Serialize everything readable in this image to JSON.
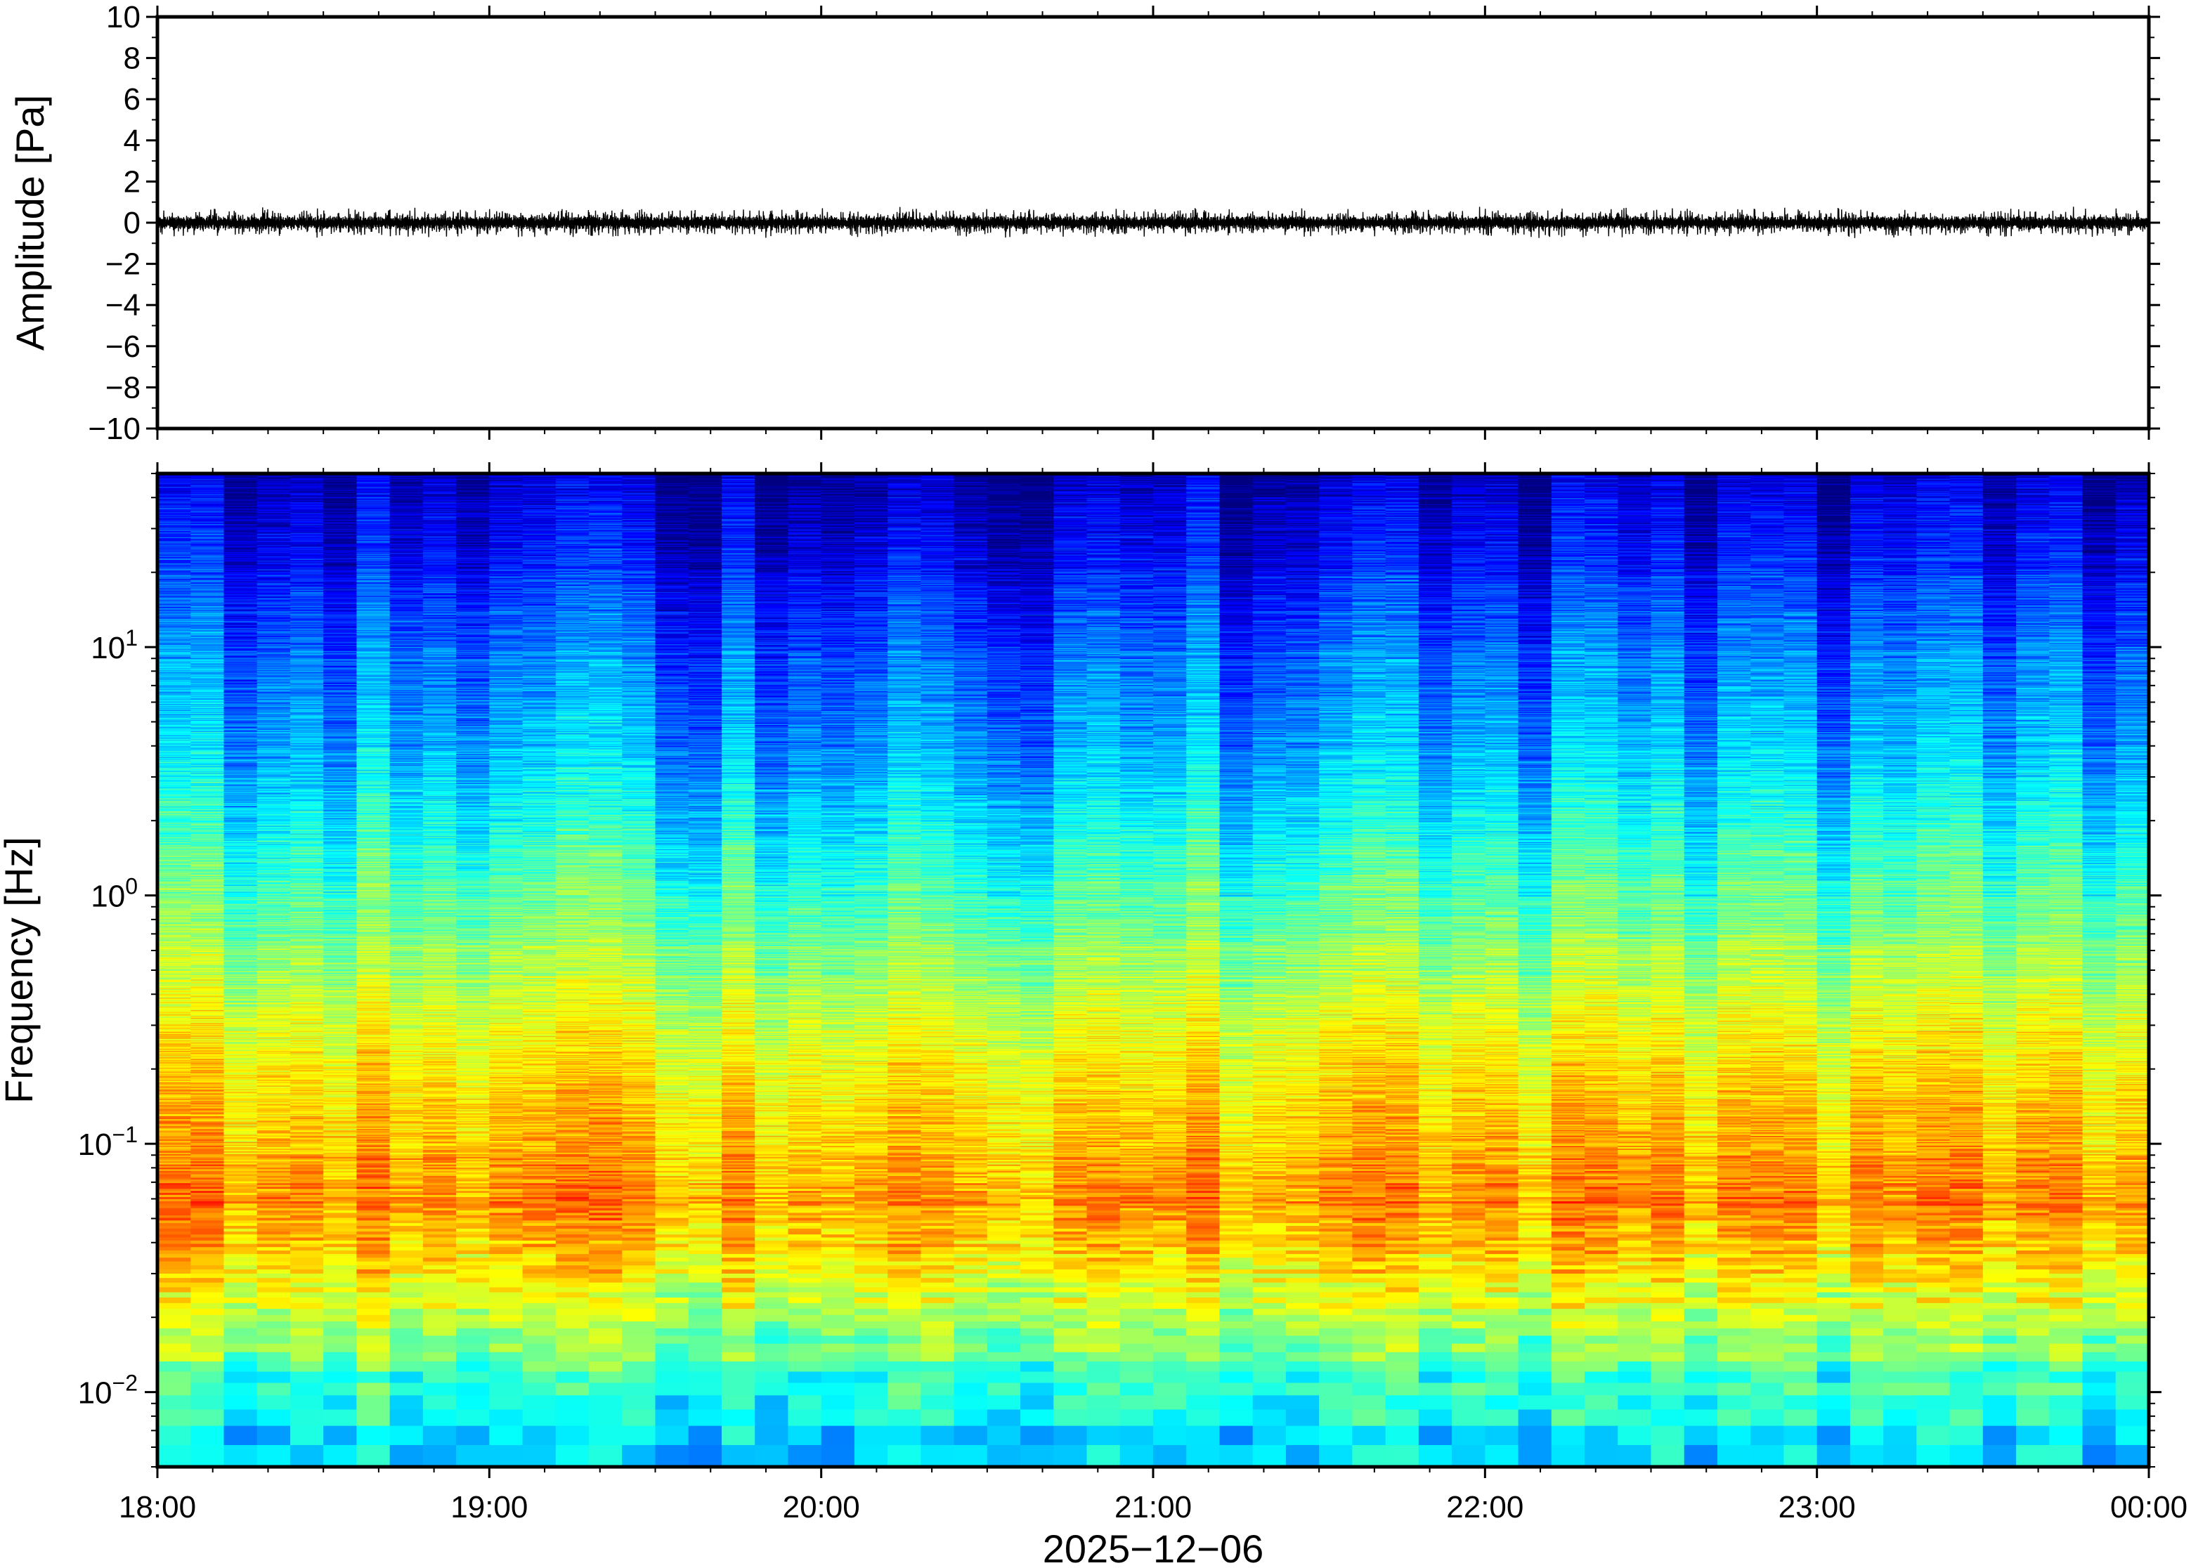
{
  "chart_data": [
    {
      "type": "line",
      "panel": "waveform",
      "ylabel": "Amplitude [Pa]",
      "ylim": [
        -10,
        10
      ],
      "yticks": [
        10,
        8,
        6,
        4,
        2,
        0,
        -2,
        -4,
        -6,
        -8,
        -10
      ],
      "ytick_labels": [
        "10",
        "8",
        "6",
        "4",
        "2",
        "0",
        "−2",
        "−4",
        "−6",
        "−8",
        "−10"
      ],
      "series": [
        {
          "color": "#000000",
          "description_values": {
            "baseline": 0,
            "typical_peak_amplitude": 0.3,
            "max_peak_amplitude": 0.8
          }
        }
      ],
      "xlim": [
        "18:00",
        "00:00"
      ]
    },
    {
      "type": "heatmap",
      "panel": "spectrogram",
      "ylabel": "Frequency [Hz]",
      "yscale": "log",
      "ylim": [
        0.005,
        50
      ],
      "yticks": [
        {
          "value": 0.01,
          "base": "10",
          "exp": "−2"
        },
        {
          "value": 0.1,
          "base": "10",
          "exp": "−1"
        },
        {
          "value": 1,
          "base": "10",
          "exp": "0"
        },
        {
          "value": 10,
          "base": "10",
          "exp": "1"
        }
      ],
      "xlim": [
        "18:00",
        "00:00"
      ],
      "xticks": [
        "18:00",
        "19:00",
        "20:00",
        "21:00",
        "22:00",
        "23:00",
        "00:00"
      ],
      "xlabel": "2025−12−06",
      "colormap": "jet",
      "time_bins": 60,
      "colorscale_stops": [
        "#00007f",
        "#0000ff",
        "#007fff",
        "#00ffff",
        "#7fff7f",
        "#ffff00",
        "#ff7f00",
        "#ff0000"
      ],
      "typical_level_by_frequency": [
        {
          "frequency": 0.006,
          "level": 0.34
        },
        {
          "frequency": 0.01,
          "level": 0.4
        },
        {
          "frequency": 0.02,
          "level": 0.55
        },
        {
          "frequency": 0.04,
          "level": 0.68
        },
        {
          "frequency": 0.06,
          "level": 0.73
        },
        {
          "frequency": 0.1,
          "level": 0.69
        },
        {
          "frequency": 0.3,
          "level": 0.6
        },
        {
          "frequency": 1,
          "level": 0.45
        },
        {
          "frequency": 3,
          "level": 0.32
        },
        {
          "frequency": 10,
          "level": 0.22
        },
        {
          "frequency": 30,
          "level": 0.1
        },
        {
          "frequency": 50,
          "level": 0.05
        }
      ]
    }
  ]
}
